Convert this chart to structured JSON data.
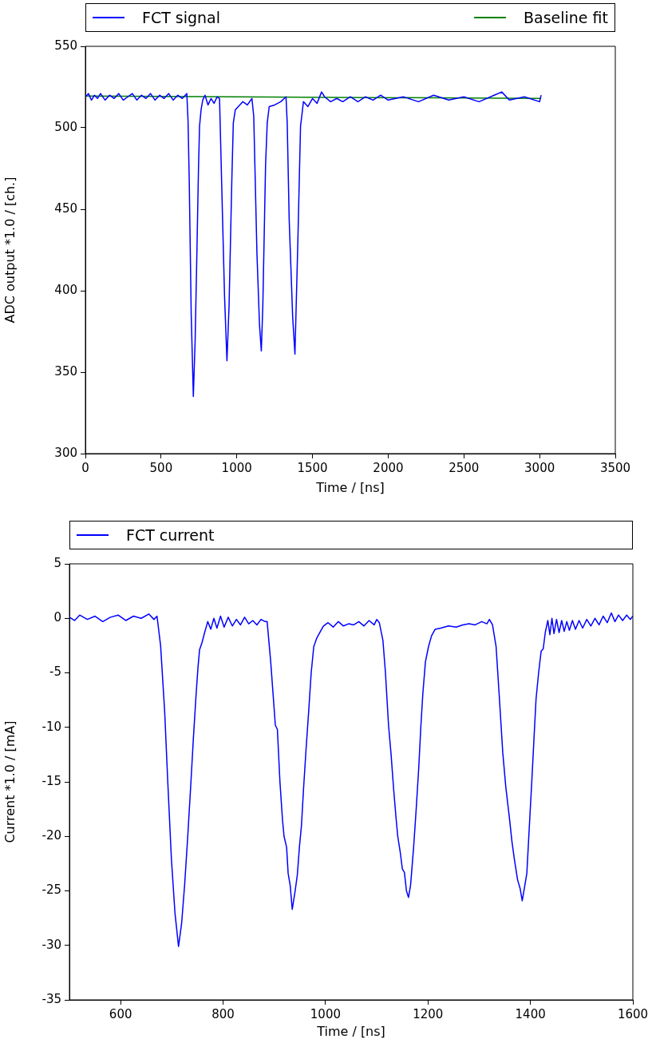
{
  "chart_data": [
    {
      "type": "line",
      "xlabel": "Time / [ns]",
      "ylabel": "ADC output *1.0 / [ch.]",
      "legend": "top",
      "grid": false,
      "marker": "none",
      "line_style": "solid",
      "xlim": [
        0,
        3500
      ],
      "xticks": [
        0,
        500,
        1000,
        1500,
        2000,
        2500,
        3000,
        3500
      ],
      "ylim": [
        300,
        550
      ],
      "yticks": [
        300,
        350,
        400,
        450,
        500,
        550
      ],
      "x": [
        0,
        20,
        40,
        60,
        80,
        100,
        130,
        160,
        190,
        220,
        250,
        280,
        310,
        340,
        370,
        400,
        430,
        460,
        490,
        520,
        550,
        580,
        610,
        640,
        670,
        678,
        686,
        699,
        713,
        725,
        737,
        747,
        754,
        764,
        775,
        790,
        810,
        830,
        850,
        870,
        886,
        902,
        919,
        935,
        949,
        967,
        977,
        990,
        1010,
        1040,
        1070,
        1100,
        1112,
        1133,
        1150,
        1162,
        1172,
        1190,
        1201,
        1214,
        1250,
        1290,
        1325,
        1333,
        1346,
        1369,
        1384,
        1403,
        1421,
        1429,
        1440,
        1470,
        1500,
        1530,
        1560,
        1580,
        1620,
        1660,
        1700,
        1750,
        1800,
        1850,
        1900,
        1950,
        2000,
        2100,
        2200,
        2300,
        2400,
        2500,
        2600,
        2700,
        2750,
        2800,
        2900,
        3000,
        3010
      ],
      "series": [
        {
          "name": "FCT signal",
          "color": "#0000ff",
          "values": [
            519,
            521,
            517,
            520,
            518,
            521,
            517,
            520,
            518,
            521,
            517,
            519,
            521,
            517,
            520,
            518,
            521,
            517,
            520,
            518,
            521,
            517,
            520,
            518,
            521,
            504,
            467,
            385,
            335,
            370,
            426,
            475,
            501,
            511,
            517,
            520,
            514,
            518,
            515,
            519,
            518,
            459,
            397,
            357,
            391,
            467,
            503,
            511,
            513,
            516,
            514,
            518,
            507,
            423,
            379,
            363,
            391,
            477,
            503,
            513,
            514,
            516,
            519,
            503,
            444,
            384,
            361,
            429,
            501,
            507,
            516,
            513,
            518,
            515,
            522,
            519,
            516,
            518,
            516,
            519,
            516,
            519,
            517,
            520,
            517,
            519,
            516,
            520,
            517,
            519,
            516,
            520,
            522,
            517,
            519,
            516,
            520
          ]
        },
        {
          "name": "Baseline fit",
          "color": "#008000",
          "x": [
            0,
            3010
          ],
          "values": [
            519.5,
            518
          ]
        }
      ]
    },
    {
      "type": "line",
      "xlabel": "Time / [ns]",
      "ylabel": "Current *1.0 / [mA]",
      "legend": "top",
      "grid": false,
      "marker": "none",
      "line_style": "solid",
      "xlim": [
        500,
        1600
      ],
      "xticks": [
        600,
        800,
        1000,
        1200,
        1400,
        1600
      ],
      "ylim": [
        -35,
        5
      ],
      "yticks": [
        -35,
        -30,
        -25,
        -20,
        -15,
        -10,
        -5,
        0,
        5
      ],
      "x": [
        500,
        510,
        520,
        535,
        550,
        565,
        580,
        595,
        610,
        625,
        640,
        655,
        665,
        671,
        678,
        686,
        692,
        699,
        706,
        713,
        719,
        725,
        731,
        737,
        742,
        747,
        751,
        754,
        759,
        764,
        770,
        776,
        782,
        788,
        795,
        802,
        810,
        818,
        826,
        834,
        842,
        850,
        858,
        866,
        874,
        882,
        886,
        893,
        902,
        906,
        911,
        916,
        919,
        924,
        927,
        931,
        935,
        941,
        945,
        949,
        953,
        957,
        962,
        967,
        972,
        977,
        983,
        990,
        996,
        1005,
        1015,
        1025,
        1035,
        1045,
        1055,
        1065,
        1075,
        1085,
        1095,
        1100,
        1105,
        1112,
        1117,
        1123,
        1128,
        1133,
        1138,
        1141,
        1146,
        1150,
        1154,
        1158,
        1162,
        1166,
        1172,
        1177,
        1182,
        1186,
        1190,
        1195,
        1201,
        1207,
        1214,
        1225,
        1240,
        1255,
        1268,
        1280,
        1292,
        1305,
        1315,
        1320,
        1326,
        1333,
        1339,
        1346,
        1352,
        1359,
        1364,
        1369,
        1375,
        1380,
        1384,
        1388,
        1393,
        1398,
        1403,
        1407,
        1411,
        1416,
        1421,
        1425,
        1429,
        1434,
        1438,
        1442,
        1446,
        1451,
        1456,
        1461,
        1466,
        1471,
        1476,
        1482,
        1488,
        1495,
        1502,
        1510,
        1518,
        1526,
        1534,
        1542,
        1550,
        1558,
        1565,
        1572,
        1580,
        1588,
        1595,
        1600
      ],
      "series": [
        {
          "name": "FCT current",
          "color": "#0000ff",
          "values": [
            0.1,
            -0.2,
            0.3,
            -0.1,
            0.2,
            -0.3,
            0.1,
            0.3,
            -0.2,
            0.2,
            0.0,
            0.4,
            -0.1,
            0.2,
            -2.5,
            -8.6,
            -15,
            -22,
            -27,
            -30.1,
            -28,
            -24.4,
            -20,
            -15.2,
            -11,
            -7.2,
            -4.5,
            -2.9,
            -2.2,
            -1.3,
            -0.3,
            -1.0,
            0.0,
            -0.9,
            0.2,
            -0.8,
            0.1,
            -0.7,
            -0.1,
            -0.6,
            0.1,
            -0.5,
            -0.2,
            -0.6,
            -0.1,
            -0.3,
            -0.3,
            -4,
            -9.8,
            -10.2,
            -15,
            -18.5,
            -20,
            -21,
            -23.4,
            -24.5,
            -26.7,
            -24.9,
            -23.5,
            -21,
            -19,
            -15.7,
            -12,
            -8.6,
            -5,
            -2.6,
            -1.8,
            -1.2,
            -0.7,
            -0.4,
            -0.8,
            -0.3,
            -0.7,
            -0.5,
            -0.6,
            -0.3,
            -0.7,
            -0.2,
            -0.6,
            -0.1,
            -0.4,
            -2,
            -5,
            -9.8,
            -12.5,
            -15.7,
            -18.5,
            -20,
            -21.5,
            -23,
            -23.3,
            -25,
            -25.6,
            -24.5,
            -21,
            -17.5,
            -13.7,
            -10,
            -6.9,
            -4,
            -2.6,
            -1.6,
            -1.0,
            -0.9,
            -0.7,
            -0.8,
            -0.6,
            -0.5,
            -0.6,
            -0.3,
            -0.5,
            -0.1,
            -0.6,
            -2.6,
            -7,
            -12.3,
            -15.5,
            -18.3,
            -20.5,
            -22.2,
            -24,
            -24.8,
            -25.9,
            -24.8,
            -23.4,
            -19,
            -14.7,
            -11,
            -7.4,
            -5,
            -3,
            -2.8,
            -1.3,
            -0.2,
            -1.5,
            0.0,
            -1.4,
            -0.1,
            -1.3,
            -0.2,
            -1.2,
            -0.3,
            -1.1,
            -0.2,
            -1.0,
            -0.2,
            -0.9,
            -0.1,
            -0.7,
            0.0,
            -0.6,
            0.2,
            -0.4,
            0.5,
            -0.3,
            0.3,
            -0.2,
            0.3,
            -0.1,
            0.2
          ]
        }
      ]
    }
  ]
}
